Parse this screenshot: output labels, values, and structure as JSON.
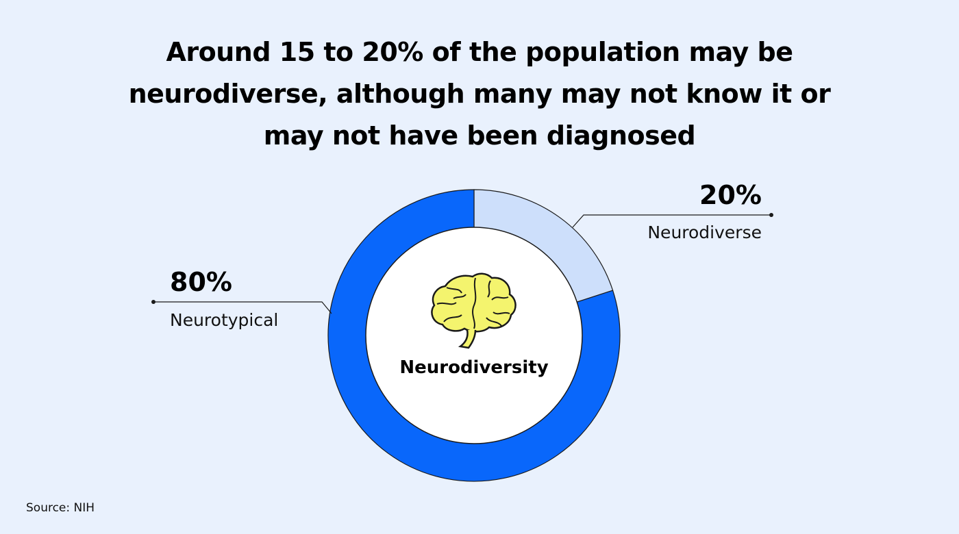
{
  "title_lines": [
    "Around 15 to 20% of the population may be",
    "neurodiverse, although many may not know it or",
    "may not have been diagnosed"
  ],
  "source": "Source: NIH",
  "chart_data": {
    "type": "pie",
    "variant": "donut",
    "center_label": "Neurodiversity",
    "center_icon": "brain-icon",
    "slices": [
      {
        "label": "Neurodiverse",
        "value": 20,
        "value_label": "20%",
        "color": "#cddffb"
      },
      {
        "label": "Neurotypical",
        "value": 80,
        "value_label": "80%",
        "color": "#0967fb"
      }
    ],
    "start_angle": "12 o'clock",
    "direction": "clockwise",
    "colors": {
      "ring_outline": "#1a1a1a",
      "hole": "#ffffff",
      "icon_fill": "#f4f46e",
      "background": "#e9f1fd"
    }
  }
}
